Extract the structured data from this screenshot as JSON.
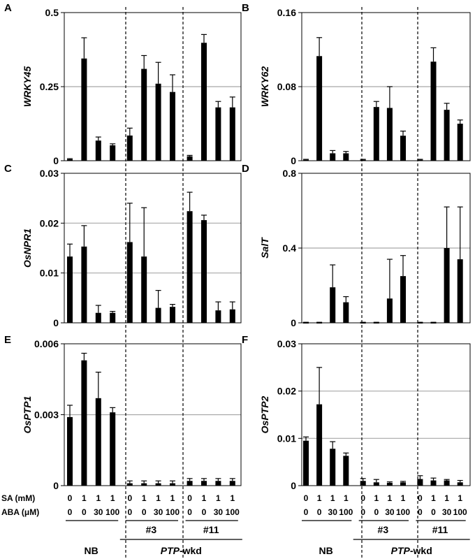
{
  "chart_data": [
    {
      "id": "A",
      "type": "bar",
      "ylabel": "WRKY45",
      "ylim": [
        0,
        0.5
      ],
      "yticks": [
        0,
        0.25,
        0.5
      ],
      "tick_labels": [
        "0",
        "0.25",
        "0.5"
      ],
      "gridlines": [
        0.25
      ],
      "values": [
        0.005,
        0.345,
        0.068,
        0.052,
        0.085,
        0.31,
        0.26,
        0.232,
        0.015,
        0.398,
        0.18,
        0.18
      ],
      "errors": [
        0.002,
        0.07,
        0.012,
        0.005,
        0.025,
        0.045,
        0.072,
        0.058,
        0.003,
        0.028,
        0.02,
        0.035
      ]
    },
    {
      "id": "B",
      "type": "bar",
      "ylabel": "WRKY62",
      "ylim": [
        0,
        0.16
      ],
      "yticks": [
        0,
        0.08,
        0.16
      ],
      "tick_labels": [
        "0",
        "0.08",
        "0.16"
      ],
      "gridlines": [
        0.08
      ],
      "values": [
        0.001,
        0.113,
        0.008,
        0.008,
        0.001,
        0.058,
        0.057,
        0.027,
        0.001,
        0.107,
        0.055,
        0.04
      ],
      "errors": [
        0.0005,
        0.02,
        0.003,
        0.002,
        0.0005,
        0.006,
        0.023,
        0.005,
        0.0005,
        0.015,
        0.007,
        0.004
      ]
    },
    {
      "id": "C",
      "type": "bar",
      "ylabel": "OsNPR1",
      "ylim": [
        0,
        0.03
      ],
      "yticks": [
        0,
        0.01,
        0.02,
        0.03
      ],
      "tick_labels": [
        "0",
        "0.01",
        "0.02",
        "0.03"
      ],
      "gridlines": [
        0.01,
        0.02
      ],
      "values": [
        0.0133,
        0.0153,
        0.002,
        0.002,
        0.0162,
        0.0133,
        0.003,
        0.0032,
        0.0224,
        0.0206,
        0.0025,
        0.0027
      ],
      "errors": [
        0.0025,
        0.0042,
        0.0015,
        0.0003,
        0.0078,
        0.0098,
        0.0035,
        0.0005,
        0.0038,
        0.001,
        0.0017,
        0.0015
      ]
    },
    {
      "id": "D",
      "type": "bar",
      "ylabel": "SalT",
      "ylim": [
        0,
        0.8
      ],
      "yticks": [
        0,
        0.4,
        0.8
      ],
      "tick_labels": [
        "0",
        "0.4",
        "0.8"
      ],
      "gridlines": [
        0.4
      ],
      "values": [
        0.002,
        0.002,
        0.19,
        0.11,
        0.002,
        0.002,
        0.13,
        0.25,
        0.002,
        0.002,
        0.4,
        0.34
      ],
      "errors": [
        0.001,
        0.001,
        0.12,
        0.03,
        0.001,
        0.001,
        0.21,
        0.11,
        0.001,
        0.001,
        0.22,
        0.28
      ]
    },
    {
      "id": "E",
      "type": "bar",
      "ylabel": "OsPTP1",
      "ylim": [
        0,
        0.006
      ],
      "yticks": [
        0,
        0.003,
        0.006
      ],
      "tick_labels": [
        "0",
        "0.003",
        "0.006"
      ],
      "gridlines": [
        0.003
      ],
      "values": [
        0.0029,
        0.0053,
        0.0037,
        0.0031,
        0.0001,
        0.0001,
        0.0001,
        0.0001,
        0.0002,
        0.0002,
        0.0002,
        0.0002
      ],
      "errors": [
        0.0005,
        0.0003,
        0.0011,
        0.0002,
        0.0001,
        0.0001,
        0.0001,
        0.0001,
        0.0001,
        0.0001,
        0.0001,
        0.0001
      ]
    },
    {
      "id": "F",
      "type": "bar",
      "ylabel": "OsPTP2",
      "ylim": [
        0,
        0.03
      ],
      "yticks": [
        0,
        0.01,
        0.02,
        0.03
      ],
      "tick_labels": [
        "0",
        "0.01",
        "0.02",
        "0.03"
      ],
      "gridlines": [
        0.01,
        0.02
      ],
      "values": [
        0.0095,
        0.0172,
        0.0078,
        0.0063,
        0.001,
        0.0007,
        0.0006,
        0.0007,
        0.0014,
        0.0011,
        0.0011,
        0.0007
      ],
      "errors": [
        0.0008,
        0.0078,
        0.0015,
        0.0006,
        0.0005,
        0.0006,
        0.0002,
        0.0002,
        0.0007,
        0.0005,
        0.0002,
        0.0004
      ]
    }
  ],
  "conditions": {
    "sa_label": "SA (mM)",
    "aba_label": "ABA (μM)",
    "sa": [
      "0",
      "1",
      "1",
      "1",
      "0",
      "1",
      "1",
      "1",
      "0",
      "1",
      "1",
      "1"
    ],
    "aba": [
      "0",
      "0",
      "30",
      "100",
      "0",
      "0",
      "30",
      "100",
      "0",
      "0",
      "30",
      "100"
    ]
  },
  "groups": {
    "nb": "NB",
    "ptp_italic": "PTP",
    "ptp_suffix": "-wkd",
    "lines": [
      "#3",
      "#11"
    ]
  }
}
